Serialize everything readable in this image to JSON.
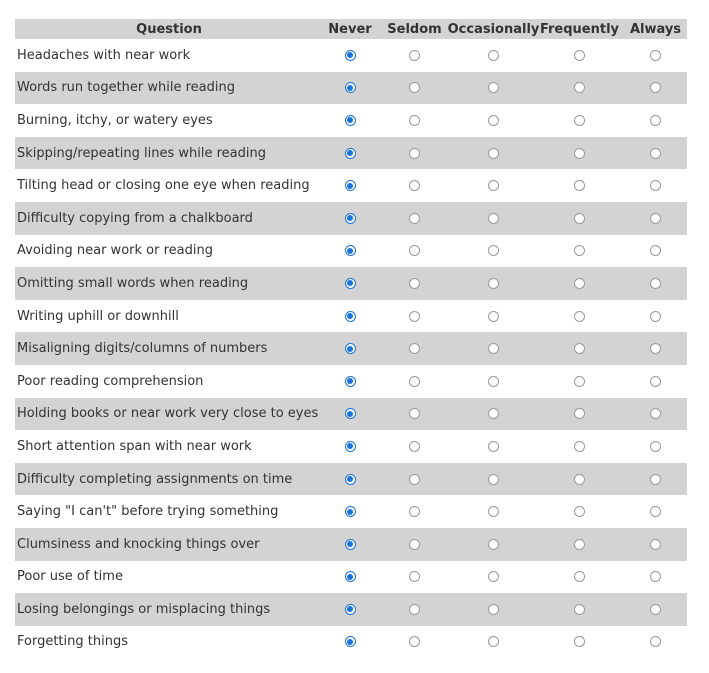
{
  "header": {
    "question": "Question",
    "options": [
      "Never",
      "Seldom",
      "Occasionally",
      "Frequently",
      "Always"
    ]
  },
  "colors": {
    "shade": "#d3d3d3",
    "selected": "#1a73d9",
    "unselected_border": "#9a9a9a"
  },
  "rows": [
    {
      "question": "Headaches with near work",
      "selected": "Never"
    },
    {
      "question": "Words run together while reading",
      "selected": "Never"
    },
    {
      "question": "Burning, itchy, or watery eyes",
      "selected": "Never"
    },
    {
      "question": "Skipping/repeating lines while reading",
      "selected": "Never"
    },
    {
      "question": "Tilting head or closing one eye when reading",
      "selected": "Never"
    },
    {
      "question": "Difficulty copying from a chalkboard",
      "selected": "Never"
    },
    {
      "question": "Avoiding near work or reading",
      "selected": "Never"
    },
    {
      "question": "Omitting small words when reading",
      "selected": "Never"
    },
    {
      "question": "Writing uphill or downhill",
      "selected": "Never"
    },
    {
      "question": "Misaligning digits/columns of numbers",
      "selected": "Never"
    },
    {
      "question": "Poor reading comprehension",
      "selected": "Never"
    },
    {
      "question": "Holding books or near work very close to eyes",
      "selected": "Never"
    },
    {
      "question": "Short attention span with near work",
      "selected": "Never"
    },
    {
      "question": "Difficulty completing assignments on time",
      "selected": "Never"
    },
    {
      "question": "Saying \"I can't\" before trying something",
      "selected": "Never"
    },
    {
      "question": "Clumsiness and knocking things over",
      "selected": "Never"
    },
    {
      "question": "Poor use of time",
      "selected": "Never"
    },
    {
      "question": "Losing belongings or misplacing things",
      "selected": "Never"
    },
    {
      "question": "Forgetting things",
      "selected": "Never"
    }
  ]
}
